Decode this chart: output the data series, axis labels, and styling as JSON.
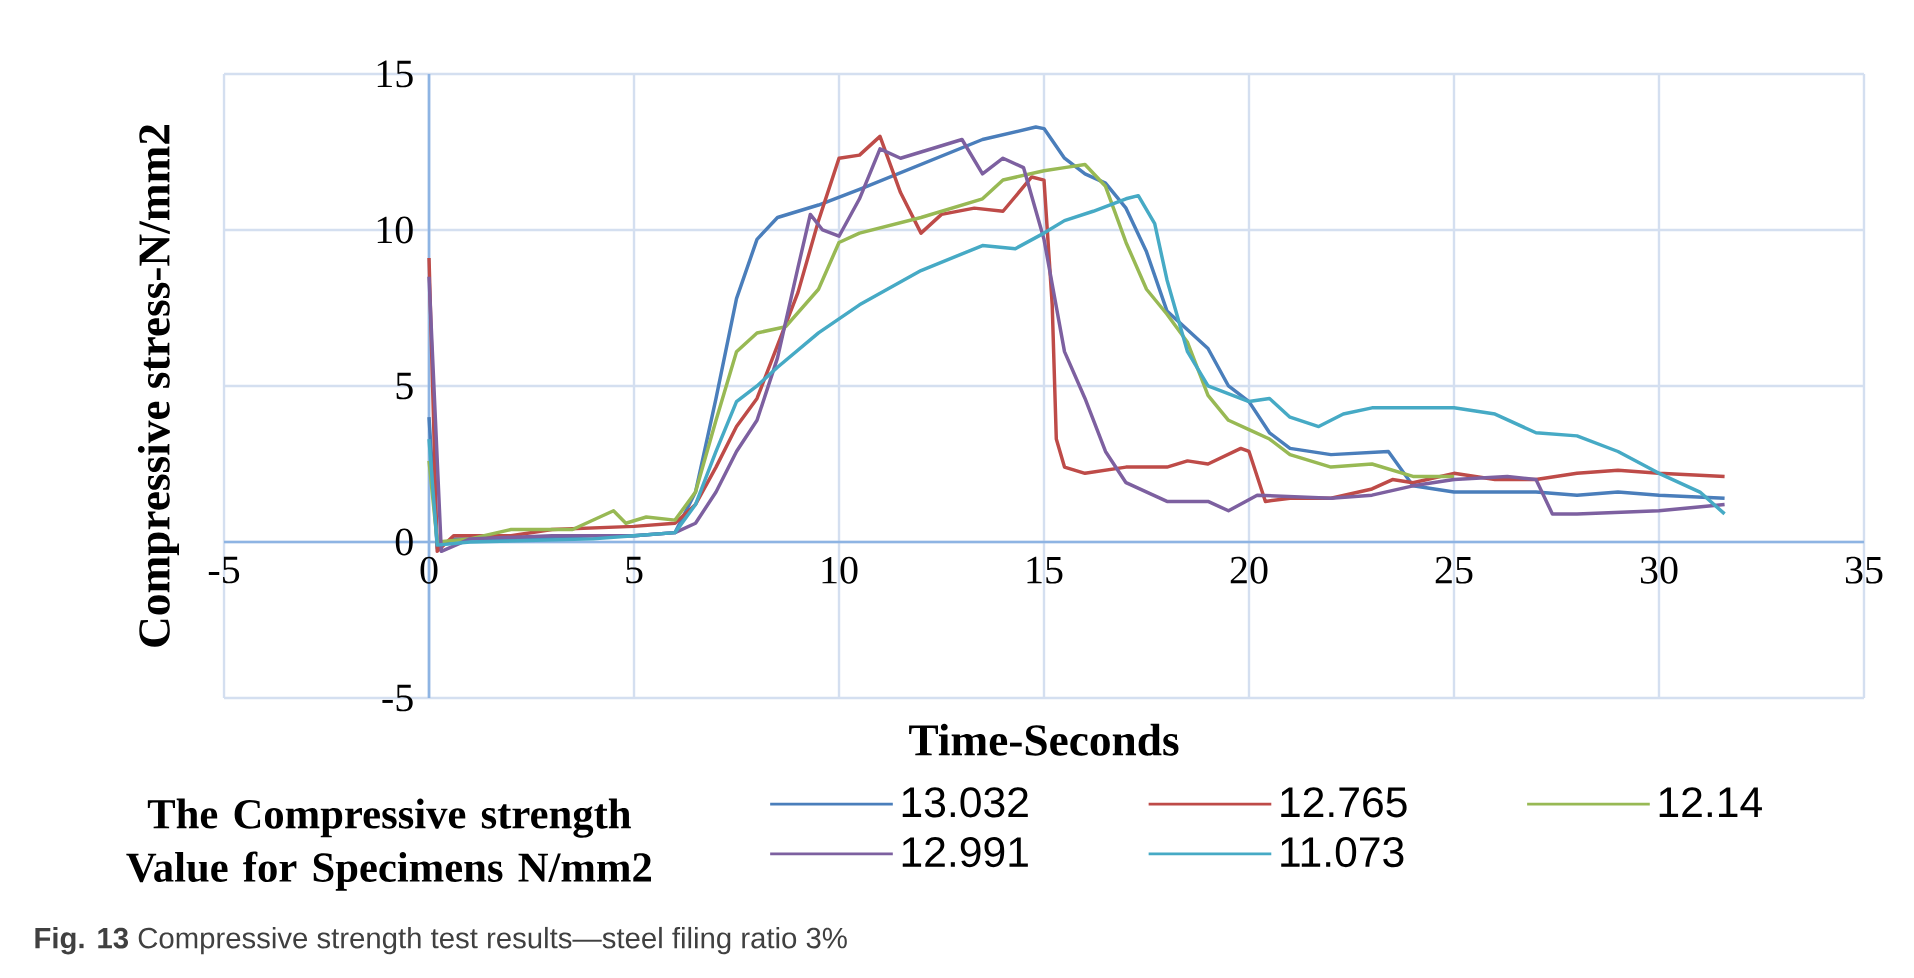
{
  "chart_data": {
    "type": "line",
    "xlabel": "Time-Seconds",
    "ylabel": "Compressive stress-N/mm2",
    "legend_title": "The  Compressive strength Value for Specimens N/mm2",
    "annotations": [
      "**Fig. 13** Compressive strength test results—steel filing ratio 3%"
    ],
    "xlim": [
      -5,
      35
    ],
    "xticks": [
      -5,
      0,
      5,
      10,
      15,
      20,
      25,
      30,
      35
    ],
    "ylim": [
      -5,
      15
    ],
    "yticks": [
      -5,
      0,
      5,
      10,
      15
    ],
    "grid": true,
    "legend": "bottom",
    "series": [
      {
        "name": "13.032",
        "color": "#4a7ebb",
        "x": [
          0,
          0.2,
          0.6,
          2,
          4,
          5,
          6,
          6.5,
          7,
          7.5,
          8,
          8.5,
          9.5,
          10.5,
          12,
          13.5,
          14.8,
          15,
          15.5,
          16,
          16.5,
          17,
          17.5,
          18,
          18.5,
          19,
          19.5,
          20,
          20.5,
          21,
          22,
          23.4,
          24,
          25,
          27,
          28,
          29,
          30,
          31.6
        ],
        "values": [
          4.0,
          -0.2,
          0.1,
          0.1,
          0.2,
          0.2,
          0.3,
          1.6,
          4.6,
          7.8,
          9.7,
          10.4,
          10.8,
          11.3,
          12.1,
          12.9,
          13.3,
          13.25,
          12.3,
          11.8,
          11.5,
          10.7,
          9.3,
          7.4,
          6.8,
          6.2,
          5.0,
          4.5,
          3.5,
          3.0,
          2.8,
          2.9,
          1.8,
          1.6,
          1.6,
          1.5,
          1.6,
          1.5,
          1.4
        ]
      },
      {
        "name": "12.765",
        "color": "#be4b48",
        "x": [
          0,
          0.2,
          0.6,
          2,
          3,
          5,
          6,
          6.5,
          7,
          7.5,
          8,
          8.5,
          9,
          9.5,
          10,
          10.5,
          11,
          11.5,
          12,
          12.5,
          13.3,
          14,
          14.7,
          15,
          15.2,
          15.3,
          15.5,
          16,
          17,
          18,
          18.5,
          19,
          19.8,
          20,
          20.4,
          21,
          22,
          23,
          23.5,
          24,
          25,
          26,
          27,
          28,
          29,
          30,
          31.6
        ],
        "values": [
          9.1,
          -0.3,
          0.2,
          0.2,
          0.4,
          0.5,
          0.6,
          1.2,
          2.4,
          3.7,
          4.6,
          6.3,
          8.0,
          10.3,
          12.3,
          12.4,
          13.0,
          11.2,
          9.9,
          10.5,
          10.7,
          10.6,
          11.7,
          11.6,
          7.6,
          3.3,
          2.4,
          2.2,
          2.4,
          2.4,
          2.6,
          2.5,
          3.0,
          2.9,
          1.3,
          1.4,
          1.4,
          1.7,
          2.0,
          1.9,
          2.2,
          2.0,
          2.0,
          2.2,
          2.3,
          2.2,
          2.1
        ]
      },
      {
        "name": "12.14",
        "color": "#98b954",
        "x": [
          0,
          0.2,
          1,
          2,
          3.5,
          4.5,
          4.8,
          5.3,
          6,
          6.5,
          7,
          7.5,
          8,
          8.7,
          9.5,
          10,
          10.5,
          12,
          13.5,
          14,
          15,
          15.5,
          16,
          16.5,
          17,
          17.5,
          18,
          18.5,
          19,
          19.5,
          20,
          20.5,
          21,
          22,
          23,
          24,
          25
        ],
        "values": [
          2.6,
          0,
          0.1,
          0.4,
          0.4,
          1.0,
          0.6,
          0.8,
          0.7,
          1.6,
          3.9,
          6.1,
          6.7,
          6.9,
          8.1,
          9.6,
          9.9,
          10.4,
          11.0,
          11.6,
          11.9,
          12.0,
          12.1,
          11.4,
          9.6,
          8.1,
          7.3,
          6.4,
          4.7,
          3.9,
          3.6,
          3.3,
          2.8,
          2.4,
          2.5,
          2.1,
          2.1
        ]
      },
      {
        "name": "12.991",
        "color": "#7d60a0",
        "x": [
          0,
          0.3,
          1,
          3,
          5,
          6,
          6.5,
          7,
          7.5,
          8,
          8.5,
          9,
          9.3,
          9.6,
          10,
          10.5,
          11,
          11.5,
          12.5,
          13,
          13.5,
          14,
          14.5,
          15,
          15.5,
          16,
          16.5,
          17,
          18,
          19,
          19.5,
          20.2,
          22,
          23,
          24,
          25,
          26.3,
          27,
          27.4,
          28,
          30,
          31.6
        ],
        "values": [
          8.5,
          -0.3,
          0.1,
          0.2,
          0.2,
          0.3,
          0.6,
          1.6,
          2.9,
          3.9,
          5.9,
          8.8,
          10.5,
          10.0,
          9.8,
          11.0,
          12.6,
          12.3,
          12.7,
          12.9,
          11.8,
          12.3,
          12.0,
          9.7,
          6.1,
          4.6,
          2.9,
          1.9,
          1.3,
          1.3,
          1.0,
          1.5,
          1.4,
          1.5,
          1.8,
          2.0,
          2.1,
          2.0,
          0.9,
          0.9,
          1.0,
          1.2
        ]
      },
      {
        "name": "11.073",
        "color": "#46aac5",
        "x": [
          0,
          0.2,
          1,
          4,
          5,
          6,
          6.5,
          7,
          7.5,
          8,
          8.5,
          9.5,
          10.5,
          12,
          13.5,
          14.3,
          15,
          15.5,
          16.2,
          17,
          17.3,
          17.7,
          18,
          18.5,
          19,
          20,
          20.5,
          21,
          21.7,
          22.3,
          23,
          24,
          25,
          26,
          27,
          28,
          29,
          30,
          31,
          31.6
        ],
        "values": [
          3.3,
          -0.1,
          0,
          0.1,
          0.2,
          0.3,
          1.2,
          2.9,
          4.5,
          5.0,
          5.6,
          6.7,
          7.6,
          8.7,
          9.5,
          9.4,
          9.9,
          10.3,
          10.6,
          11.0,
          11.1,
          10.2,
          8.4,
          6.1,
          5.0,
          4.5,
          4.6,
          4.0,
          3.7,
          4.1,
          4.3,
          4.3,
          4.3,
          4.1,
          3.5,
          3.4,
          2.9,
          2.2,
          1.6,
          0.9
        ]
      }
    ]
  }
}
